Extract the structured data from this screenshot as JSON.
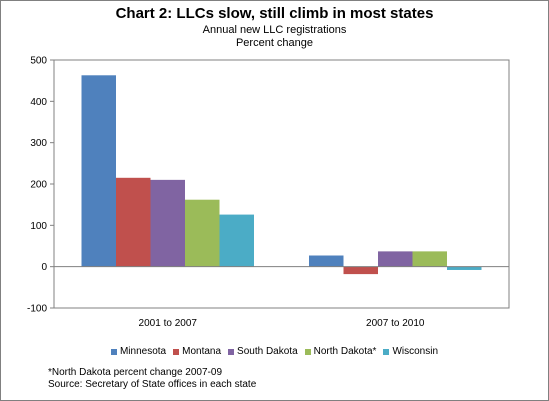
{
  "chart_data": {
    "type": "bar",
    "title": "Chart 2: LLCs slow, still climb in most states",
    "subtitle_lines": [
      "Annual new LLC registrations",
      "Percent change"
    ],
    "categories": [
      "2001 to 2007",
      "2007 to 2010"
    ],
    "series": [
      {
        "name": "Minnesota",
        "color": "#4F81BD",
        "values": [
          463,
          27
        ]
      },
      {
        "name": "Montana",
        "color": "#C0504D",
        "values": [
          215,
          -18
        ]
      },
      {
        "name": "South Dakota",
        "color": "#8064A2",
        "values": [
          210,
          37
        ]
      },
      {
        "name": "North Dakota*",
        "color": "#9BBB59",
        "values": [
          162,
          37
        ]
      },
      {
        "name": "Wisconsin",
        "color": "#4BACC6",
        "values": [
          126,
          -8
        ]
      }
    ],
    "ylim": [
      -100,
      500
    ],
    "yticks": [
      -100,
      0,
      100,
      200,
      300,
      400,
      500
    ],
    "grid": false,
    "legend_position": "bottom"
  },
  "footnotes": {
    "note": "*North Dakota percent change 2007-09",
    "source": "Source: Secretary of State offices in each state"
  }
}
